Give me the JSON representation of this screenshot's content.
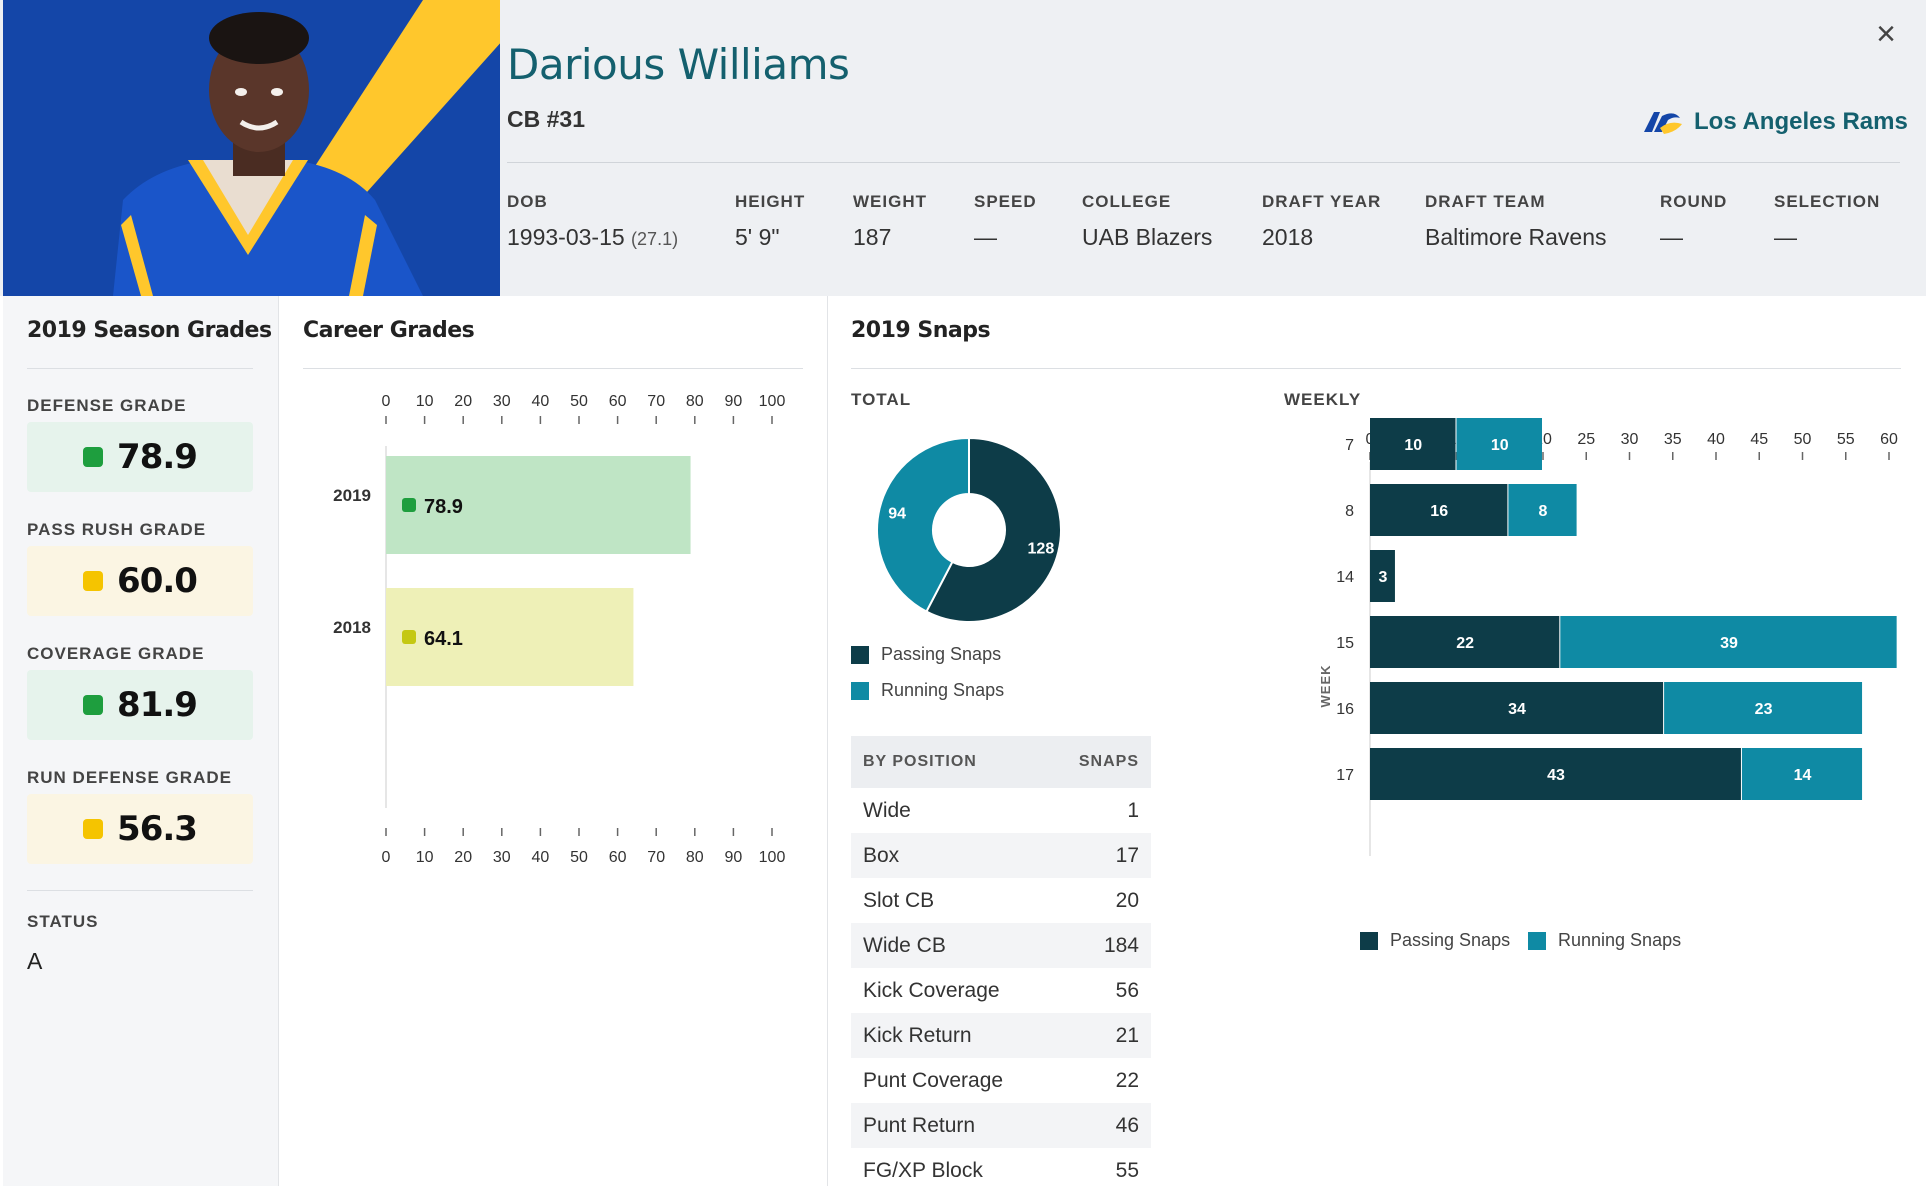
{
  "player": {
    "name": "Darious Williams",
    "position": "CB #31",
    "team": "Los Angeles Rams",
    "colors": {
      "primary": "#1446a8",
      "secondary": "#ffc72c",
      "accent": "#14606e"
    }
  },
  "close_label": "×",
  "meta": [
    {
      "label": "DOB",
      "value": "1993-03-15",
      "sub": "(27.1)"
    },
    {
      "label": "HEIGHT",
      "value": "5' 9\""
    },
    {
      "label": "WEIGHT",
      "value": "187"
    },
    {
      "label": "SPEED",
      "value": "—"
    },
    {
      "label": "COLLEGE",
      "value": "UAB Blazers"
    },
    {
      "label": "DRAFT YEAR",
      "value": "2018"
    },
    {
      "label": "DRAFT TEAM",
      "value": "Baltimore Ravens"
    },
    {
      "label": "ROUND",
      "value": "—"
    },
    {
      "label": "SELECTION",
      "value": "—"
    }
  ],
  "season_grades": {
    "title": "2019 Season Grades",
    "grades": [
      {
        "label": "DEFENSE GRADE",
        "value": "78.9",
        "color": "#1e9e3e",
        "bg": "#e6f3ec"
      },
      {
        "label": "PASS RUSH GRADE",
        "value": "60.0",
        "color": "#f5c400",
        "bg": "#fbf5e3"
      },
      {
        "label": "COVERAGE GRADE",
        "value": "81.9",
        "color": "#1e9e3e",
        "bg": "#e6f3ec"
      },
      {
        "label": "RUN DEFENSE GRADE",
        "value": "56.3",
        "color": "#f5c400",
        "bg": "#fbf5e3"
      }
    ],
    "status_label": "STATUS",
    "status_value": "A"
  },
  "career": {
    "title": "Career Grades"
  },
  "snaps": {
    "title": "2019 Snaps",
    "total_label": "TOTAL",
    "weekly_label": "WEEKLY",
    "week_axis_label": "WEEK",
    "legend": [
      "Passing Snaps",
      "Running Snaps"
    ],
    "position_header": "BY POSITION",
    "snaps_header": "SNAPS",
    "positions": [
      {
        "name": "Wide",
        "snaps": "1"
      },
      {
        "name": "Box",
        "snaps": "17"
      },
      {
        "name": "Slot CB",
        "snaps": "20"
      },
      {
        "name": "Wide CB",
        "snaps": "184"
      },
      {
        "name": "Kick Coverage",
        "snaps": "56"
      },
      {
        "name": "Kick Return",
        "snaps": "21"
      },
      {
        "name": "Punt Coverage",
        "snaps": "22"
      },
      {
        "name": "Punt Return",
        "snaps": "46"
      },
      {
        "name": "FG/XP Block",
        "snaps": "55"
      }
    ]
  },
  "chart_data": [
    {
      "type": "bar",
      "orientation": "horizontal",
      "categories": [
        "2019",
        "2018"
      ],
      "values": [
        78.9,
        64.1
      ],
      "colors": [
        "#bfe5c5",
        "#eef0b7"
      ],
      "dot_colors": [
        "#1e9e3e",
        "#c4c812"
      ],
      "xlim": [
        0,
        100
      ],
      "xticks": [
        0,
        10,
        20,
        30,
        40,
        50,
        60,
        70,
        80,
        90,
        100
      ]
    },
    {
      "type": "pie",
      "donut": true,
      "labels": [
        "Passing Snaps",
        "Running Snaps"
      ],
      "values": [
        128,
        94
      ],
      "colors": [
        "#0d3c48",
        "#0f8aa4"
      ]
    },
    {
      "type": "bar",
      "orientation": "horizontal",
      "stacked": true,
      "ylabel": "WEEK",
      "categories": [
        "7",
        "8",
        "14",
        "15",
        "16",
        "17"
      ],
      "series": [
        {
          "name": "Passing Snaps",
          "values": [
            10,
            16,
            3,
            22,
            34,
            43
          ],
          "color": "#0d3c48"
        },
        {
          "name": "Running Snaps",
          "values": [
            10,
            8,
            0,
            39,
            23,
            14
          ],
          "color": "#0f8aa4"
        }
      ],
      "xlim": [
        0,
        60
      ],
      "xticks": [
        0,
        5,
        10,
        15,
        20,
        25,
        30,
        35,
        40,
        45,
        50,
        55,
        60
      ]
    }
  ]
}
